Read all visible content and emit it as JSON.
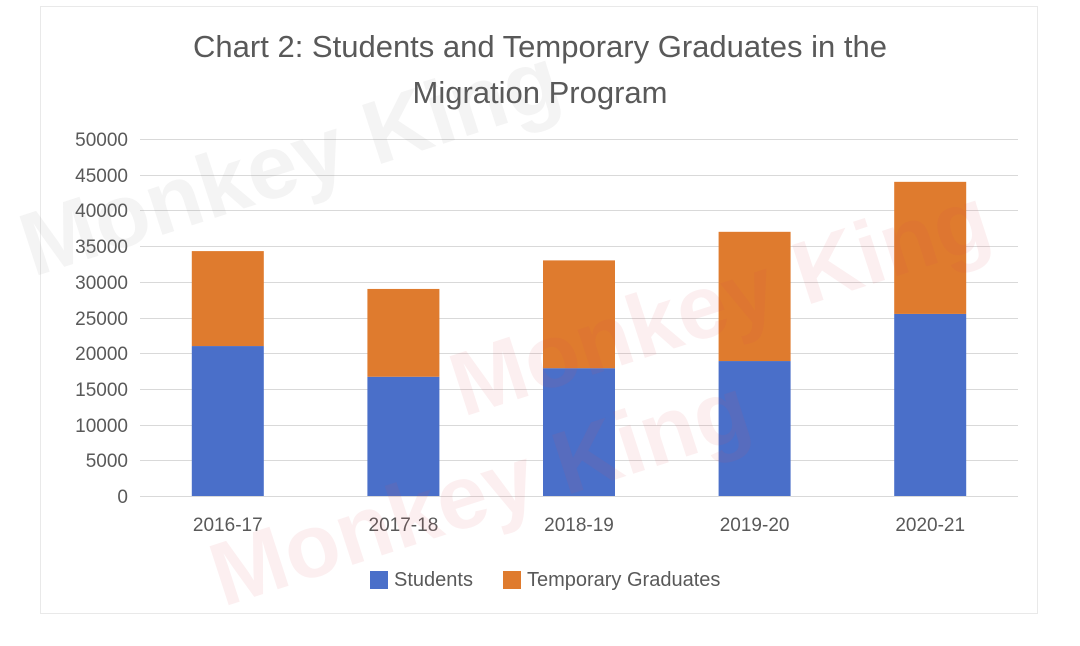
{
  "watermark": {
    "text": "Monkey King"
  },
  "chart_data": {
    "type": "bar",
    "stacked": true,
    "title": "Chart 2: Students and Temporary Graduates in the Migration Program",
    "xlabel": "",
    "ylabel": "",
    "categories": [
      "2016-17",
      "2017-18",
      "2018-19",
      "2019-20",
      "2020-21"
    ],
    "series": [
      {
        "name": "Students",
        "color": "#4A6FC9",
        "values": [
          21000,
          16700,
          17900,
          18900,
          25500
        ]
      },
      {
        "name": "Temporary Graduates",
        "color": "#DF7B2E",
        "values": [
          13300,
          12300,
          15100,
          18100,
          18500
        ]
      }
    ],
    "ylim": [
      0,
      50000
    ],
    "yticks": [
      0,
      5000,
      10000,
      15000,
      20000,
      25000,
      30000,
      35000,
      40000,
      45000,
      50000
    ],
    "grid": true,
    "legend": "bottom"
  }
}
